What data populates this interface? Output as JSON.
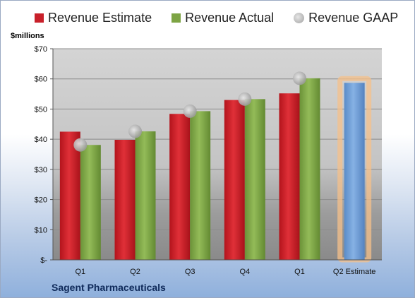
{
  "chart_data": {
    "type": "bar",
    "categories": [
      "Q1",
      "Q2",
      "Q3",
      "Q4",
      "Q1",
      "Q2 Estimate"
    ],
    "series": [
      {
        "name": "Revenue Estimate",
        "values": [
          42.5,
          39.8,
          48.4,
          53.0,
          55.2,
          null
        ],
        "color": "#c8202a"
      },
      {
        "name": "Revenue Actual",
        "values": [
          38.1,
          42.6,
          49.3,
          53.3,
          60.2,
          null
        ],
        "color": "#7da444"
      },
      {
        "name": "Revenue GAAP",
        "values": [
          38.1,
          42.6,
          49.3,
          53.3,
          60.2,
          null
        ],
        "color": "#b0b0b0"
      }
    ],
    "estimate": {
      "category": "Q2 Estimate",
      "value": 58.7,
      "color": "#6a9bd6",
      "highlight": "#f5c08a"
    },
    "yticks": [
      {
        "value": 0,
        "label": "$-"
      },
      {
        "value": 10,
        "label": "$10"
      },
      {
        "value": 20,
        "label": "$20"
      },
      {
        "value": 30,
        "label": "$30"
      },
      {
        "value": 40,
        "label": "$40"
      },
      {
        "value": 50,
        "label": "$50"
      },
      {
        "value": 60,
        "label": "$60"
      },
      {
        "value": 70,
        "label": "$70"
      }
    ],
    "ylim": [
      0,
      70
    ],
    "ylabel": "$millions",
    "grid": true,
    "legend": "top"
  },
  "footer": {
    "company": "Sagent Pharmaceuticals"
  },
  "icons": {
    "gaap_marker": "circle-marker"
  }
}
